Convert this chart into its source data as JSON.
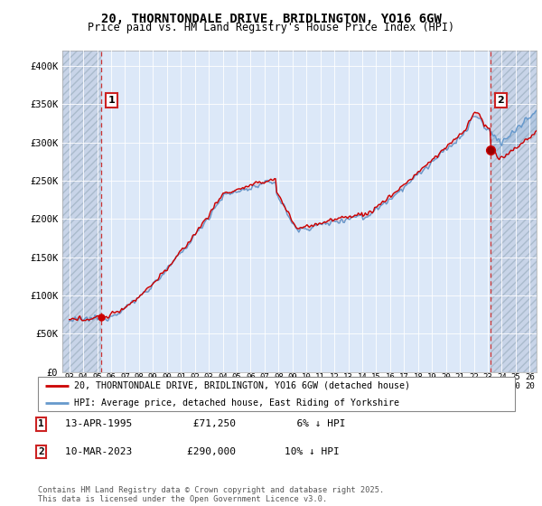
{
  "title": "20, THORNTONDALE DRIVE, BRIDLINGTON, YO16 6GW",
  "subtitle": "Price paid vs. HM Land Registry's House Price Index (HPI)",
  "sale1_date": 1995.28,
  "sale1_price": 71250,
  "sale1_label": "1",
  "sale2_date": 2023.19,
  "sale2_price": 290000,
  "sale2_label": "2",
  "legend_line1": "20, THORNTONDALE DRIVE, BRIDLINGTON, YO16 6GW (detached house)",
  "legend_line2": "HPI: Average price, detached house, East Riding of Yorkshire",
  "note1_date": "13-APR-1995",
  "note1_price": "£71,250",
  "note1_hpi": "6% ↓ HPI",
  "note2_date": "10-MAR-2023",
  "note2_price": "£290,000",
  "note2_hpi": "10% ↓ HPI",
  "footer": "Contains HM Land Registry data © Crown copyright and database right 2025.\nThis data is licensed under the Open Government Licence v3.0.",
  "xmin": 1992.5,
  "xmax": 2026.5,
  "ymin": 0,
  "ymax": 420000,
  "plot_bg": "#dce8f8",
  "hatch_bg": "#c8d4e8",
  "hpi_color": "#6699cc",
  "price_color": "#cc0000",
  "dashed_line_color": "#cc3333",
  "grid_color": "#ffffff",
  "hatch_pattern": "////",
  "hatch_edge_color": "#aabbcc"
}
